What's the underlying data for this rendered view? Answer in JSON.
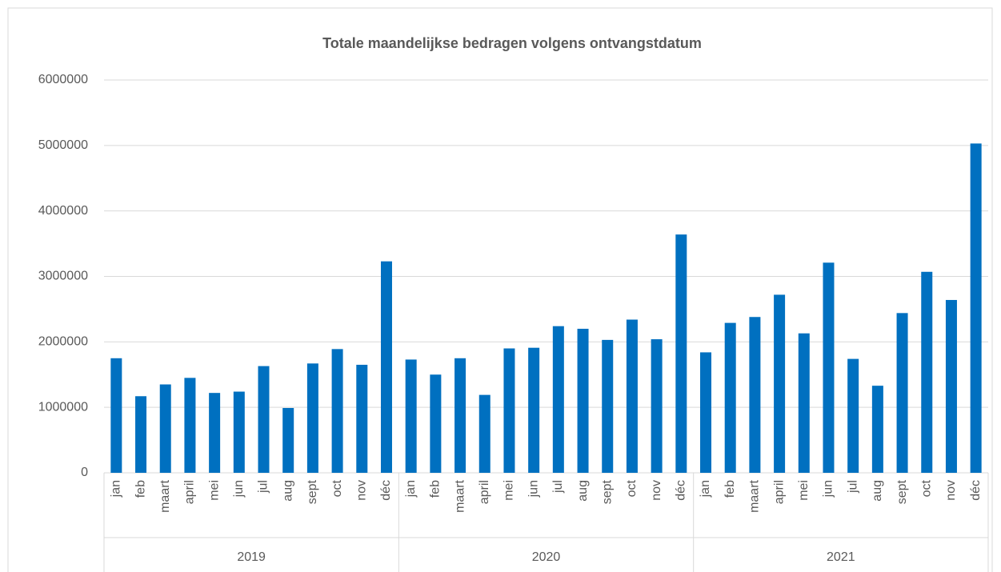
{
  "chart_data": {
    "type": "bar",
    "title": "Totale maandelijkse bedragen volgens ontvangstdatum",
    "category_groups": [
      "2019",
      "2020",
      "2021"
    ],
    "categories": [
      "jan",
      "feb",
      "maart",
      "april",
      "mei",
      "jun",
      "jul",
      "aug",
      "sept",
      "oct",
      "nov",
      "déc",
      "jan",
      "feb",
      "maart",
      "april",
      "mei",
      "jun",
      "jul",
      "aug",
      "sept",
      "oct",
      "nov",
      "déc",
      "jan",
      "feb",
      "maart",
      "april",
      "mei",
      "jun",
      "jul",
      "aug",
      "sept",
      "oct",
      "nov",
      "déc"
    ],
    "values": [
      1750000,
      1170000,
      1350000,
      1450000,
      1220000,
      1240000,
      1630000,
      990000,
      1670000,
      1890000,
      1650000,
      3230000,
      1730000,
      1500000,
      1750000,
      1190000,
      1900000,
      1910000,
      2240000,
      2200000,
      2030000,
      2340000,
      2040000,
      3640000,
      1840000,
      2290000,
      2380000,
      2720000,
      2130000,
      3210000,
      1740000,
      1330000,
      2440000,
      3070000,
      2640000,
      5030000
    ],
    "color": "#0070c0",
    "ylim": [
      0,
      6000000
    ],
    "yticks": [
      0,
      1000000,
      2000000,
      3000000,
      4000000,
      5000000,
      6000000
    ],
    "grid": true
  }
}
